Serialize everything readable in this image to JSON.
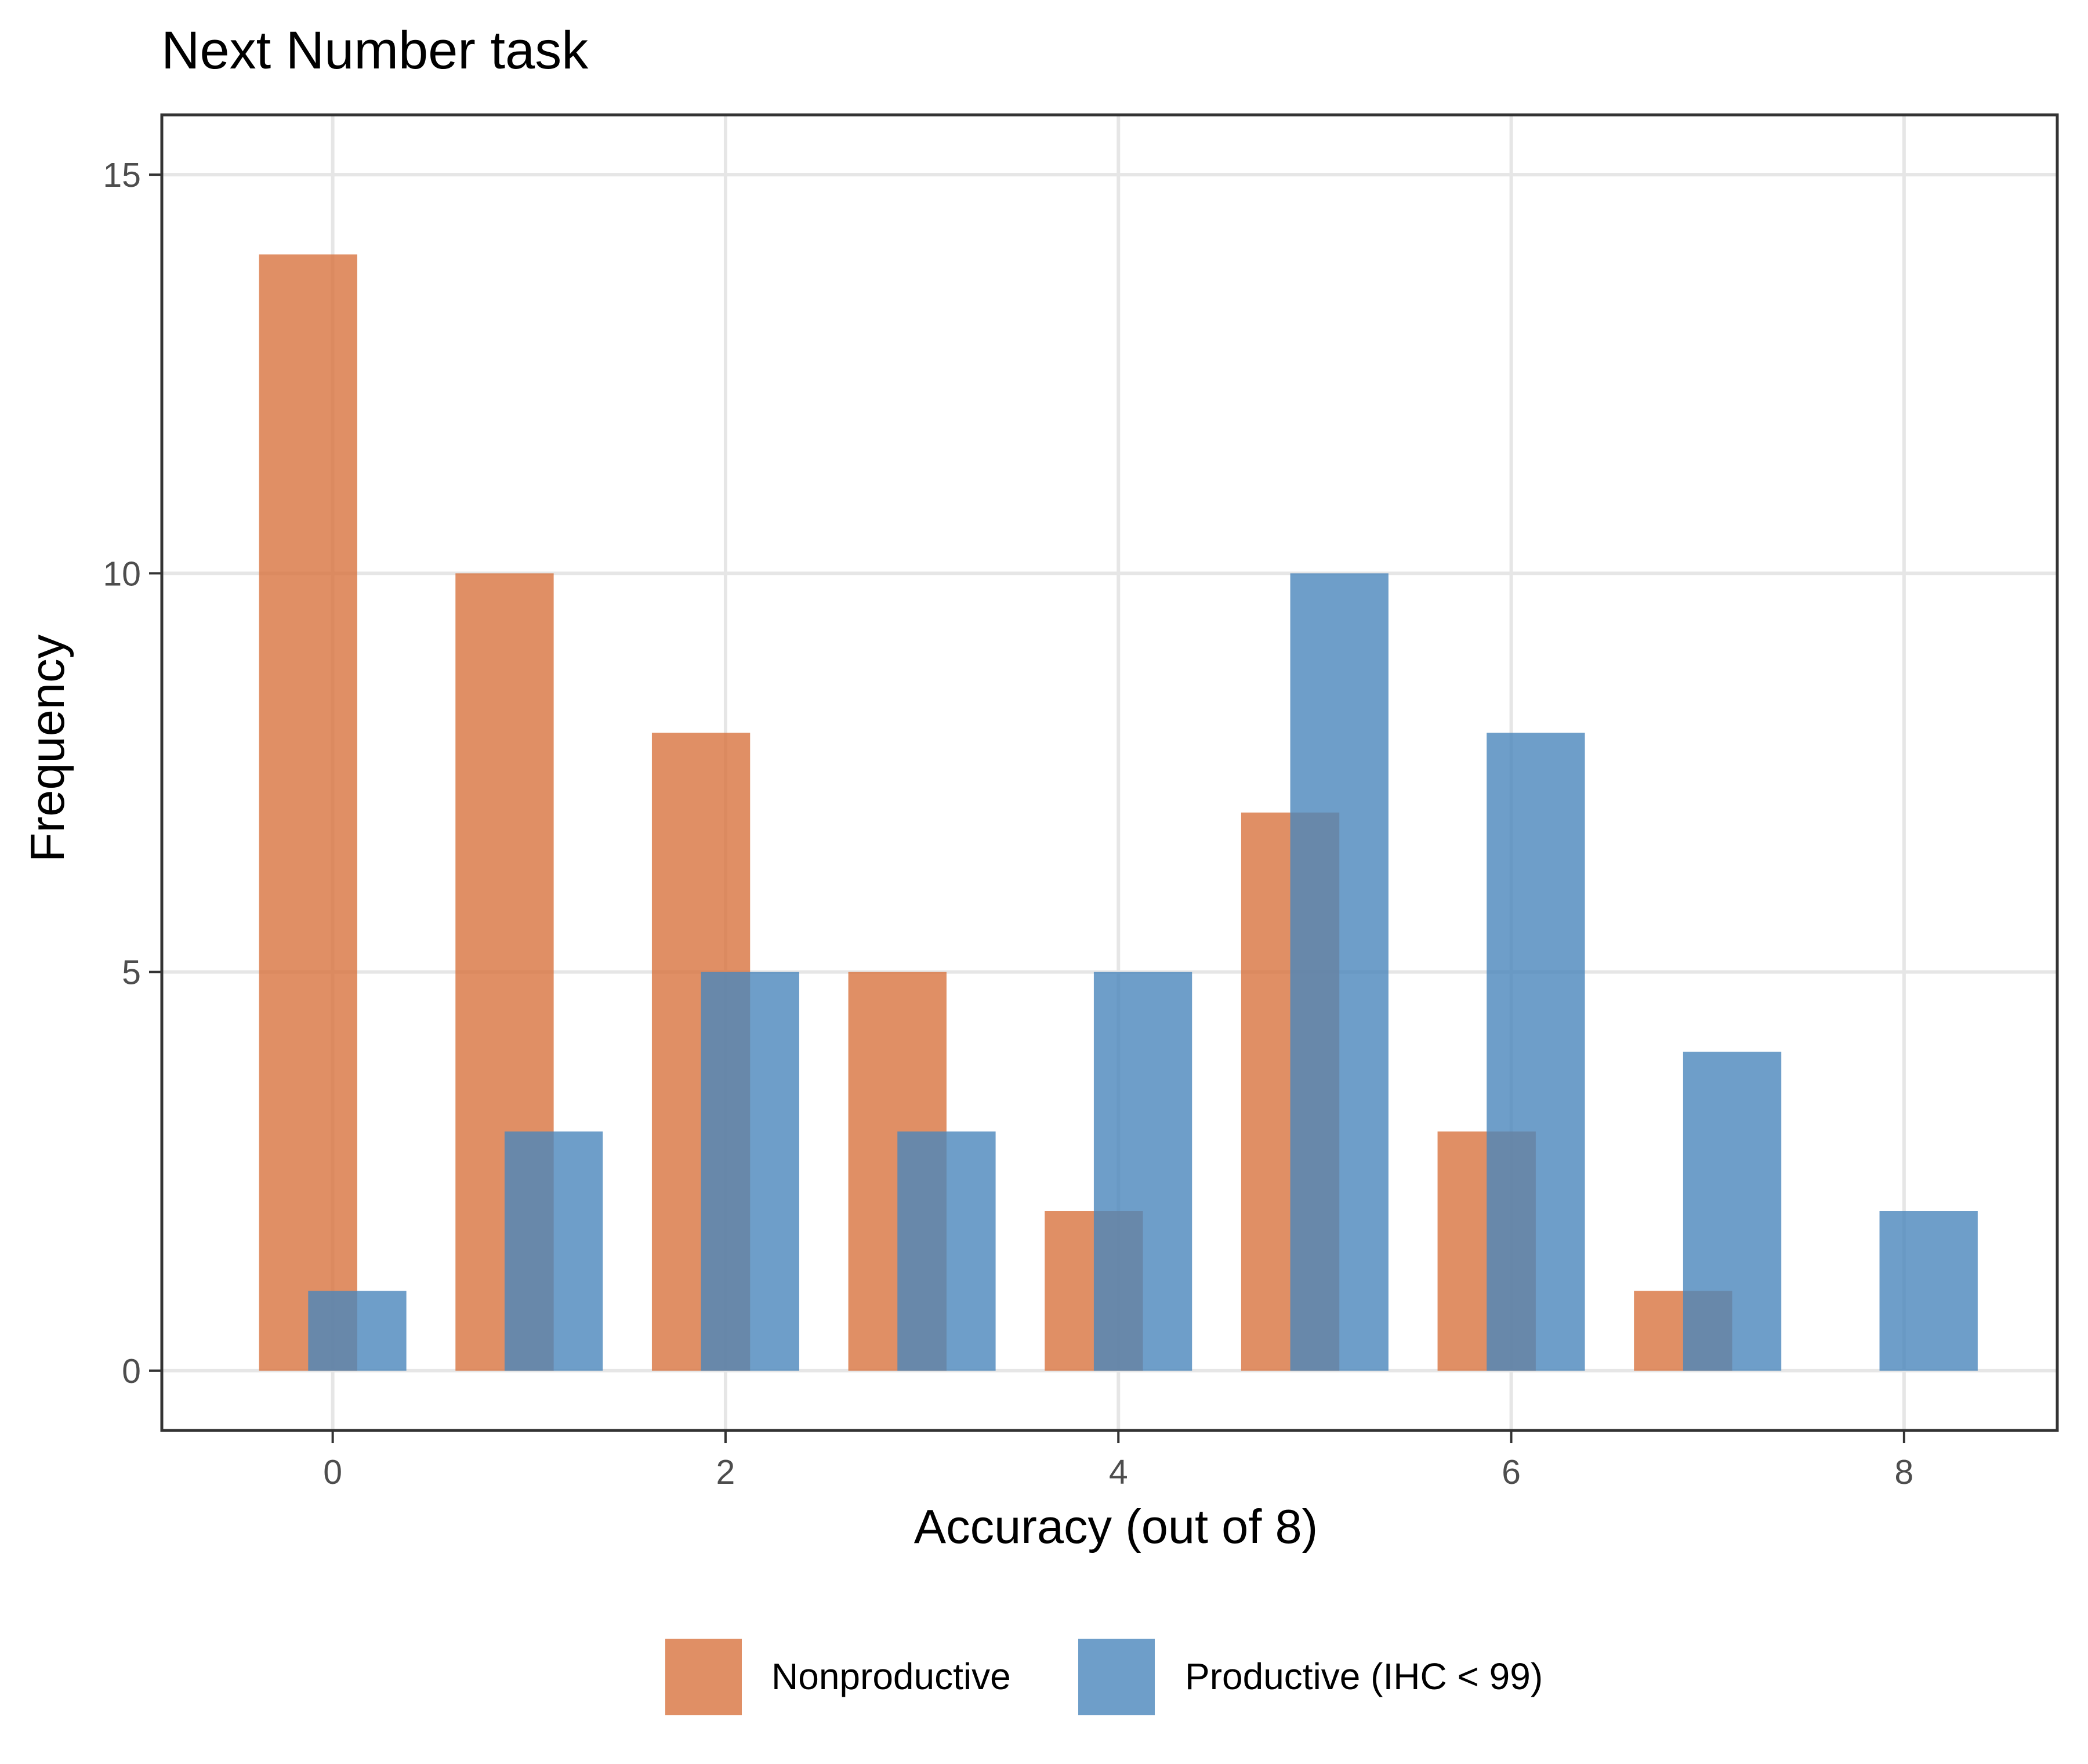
{
  "chart_data": {
    "type": "bar",
    "title": "Next Number task",
    "xlabel": "Accuracy (out of 8)",
    "ylabel": "Frequency",
    "xlim": [
      -0.87,
      8.78
    ],
    "ylim": [
      -0.75,
      15.75
    ],
    "x_ticks": [
      0,
      2,
      4,
      6,
      8
    ],
    "y_ticks": [
      0,
      5,
      10,
      15
    ],
    "grid": true,
    "legend_position": "bottom",
    "bar_width": 0.5,
    "series": [
      {
        "name": "Nonproductive",
        "color": "#D8733F",
        "opacity": 0.8,
        "x": [
          0,
          1,
          2,
          3,
          4,
          5,
          6,
          7
        ],
        "values": [
          14,
          10,
          8,
          5,
          2,
          7,
          3,
          1
        ],
        "offset": -0.125
      },
      {
        "name": "Productive (IHC < 99)",
        "color": "#4A86BB",
        "opacity": 0.8,
        "x": [
          0,
          1,
          2,
          3,
          4,
          5,
          6,
          7,
          8
        ],
        "values": [
          1,
          3,
          5,
          3,
          5,
          10,
          8,
          4,
          2
        ],
        "offset": 0.125
      }
    ]
  }
}
